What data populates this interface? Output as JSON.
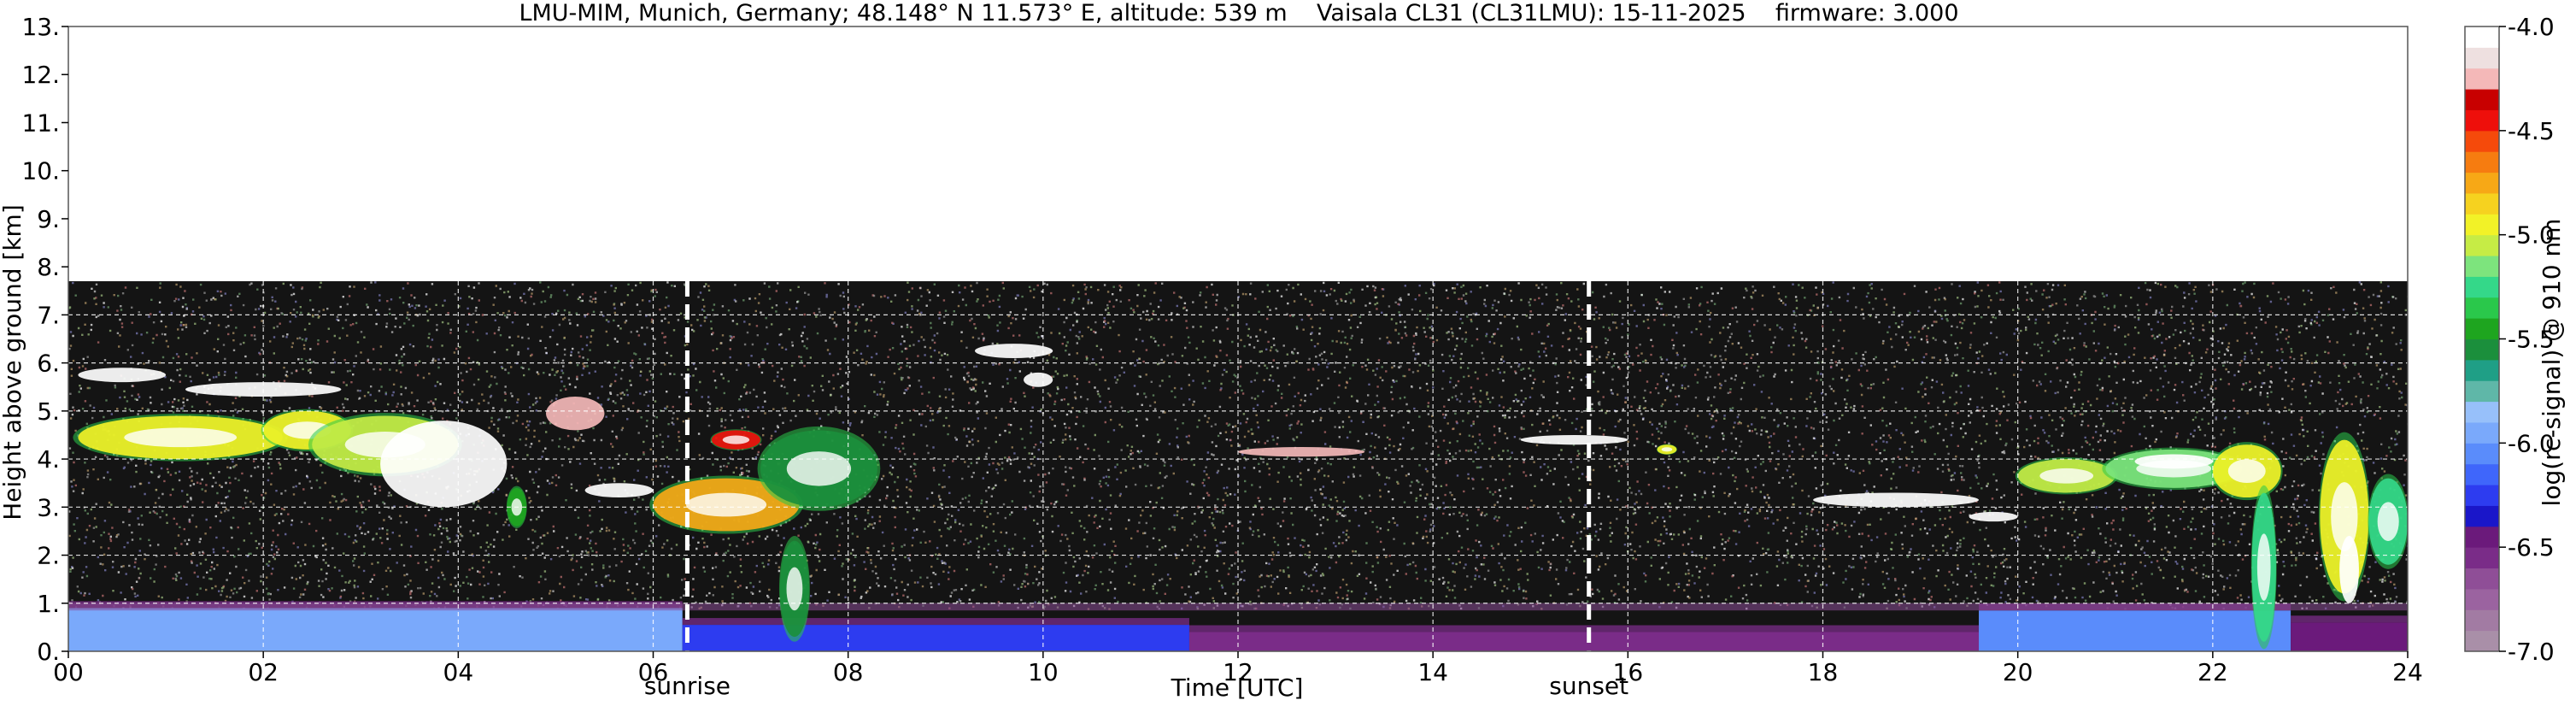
{
  "chart_data": {
    "type": "heatmap",
    "title": "LMU-MIM, Munich, Germany; 48.148° N 11.573° E, altitude: 539 m    Vaisala CL31 (CL31LMU): 15-11-2025    firmware: 3.000",
    "xlabel": "Time [UTC]",
    "ylabel": "Height above ground [km]",
    "xlim": [
      0,
      24
    ],
    "ylim": [
      0,
      13
    ],
    "x_ticks": [
      0,
      2,
      4,
      6,
      8,
      10,
      12,
      14,
      16,
      18,
      20,
      22,
      24
    ],
    "x_tick_labels": [
      "00",
      "02",
      "04",
      "06",
      "08",
      "10",
      "12",
      "14",
      "16",
      "18",
      "20",
      "22",
      "24"
    ],
    "y_ticks": [
      0,
      1,
      2,
      3,
      4,
      5,
      6,
      7,
      8,
      9,
      10,
      11,
      12,
      13
    ],
    "y_tick_labels": [
      "0.",
      "1.",
      "2.",
      "3.",
      "4.",
      "5.",
      "6.",
      "7.",
      "8.",
      "9.",
      "10.",
      "11.",
      "12.",
      "13."
    ],
    "grid": true,
    "data_top_km": 7.7,
    "markers": [
      {
        "label": "sunrise",
        "x": 6.35
      },
      {
        "label": "sunset",
        "x": 15.6
      }
    ],
    "colorbar": {
      "label": "log(rc-signal) @ 910 nm",
      "range": [
        -7.0,
        -4.0
      ],
      "ticks": [
        -7.0,
        -6.5,
        -6.0,
        -5.5,
        -5.0,
        -4.5,
        -4.0
      ],
      "tick_labels": [
        "-7.0",
        "-6.5",
        "-6.0",
        "-5.5",
        "-5.0",
        "-4.5",
        "-4.0"
      ],
      "colors": [
        "#a98fa8",
        "#a27ba3",
        "#9b63a0",
        "#8f4e97",
        "#7a2c88",
        "#6b1a7b",
        "#1a16c9",
        "#2d3cf0",
        "#3f66fb",
        "#5a8cfb",
        "#7aa9fb",
        "#97c0fa",
        "#5fb7a8",
        "#1f9f86",
        "#1b8f3c",
        "#1ea51f",
        "#2ac84b",
        "#34d889",
        "#7de47d",
        "#c6ec45",
        "#f2f227",
        "#f6d21f",
        "#f7a816",
        "#f67c10",
        "#f54a0b",
        "#ee0f0b",
        "#c80000",
        "#f4b8b8",
        "#eee0e0",
        "#ffffff"
      ]
    },
    "noise_ranges": [
      {
        "x": [
          0,
          24
        ],
        "y": [
          1.0,
          7.7
        ],
        "level": -6.7
      },
      {
        "x": [
          0,
          24
        ],
        "y": [
          0.0,
          1.0
        ],
        "level": -6.6
      }
    ],
    "boundary_layer": [
      {
        "x": [
          0,
          6.3
        ],
        "y": [
          0.0,
          0.9
        ],
        "level": -5.95
      },
      {
        "x": [
          6.3,
          11.5
        ],
        "y": [
          0.0,
          0.55
        ],
        "level": -6.2
      },
      {
        "x": [
          11.5,
          19.6
        ],
        "y": [
          0.0,
          0.4
        ],
        "level": -6.55
      },
      {
        "x": [
          19.6,
          22.8
        ],
        "y": [
          0.0,
          0.85
        ],
        "level": -6.05
      },
      {
        "x": [
          22.8,
          24
        ],
        "y": [
          0.0,
          0.6
        ],
        "level": -6.5
      }
    ],
    "cloud_features": [
      {
        "x": [
          0.1,
          1.0
        ],
        "y": [
          5.6,
          5.9
        ],
        "level": -4.1
      },
      {
        "x": [
          1.2,
          2.8
        ],
        "y": [
          5.3,
          5.6
        ],
        "level": -4.1
      },
      {
        "x": [
          0.1,
          2.2
        ],
        "y": [
          4.0,
          4.9
        ],
        "level": -5.0
      },
      {
        "x": [
          2.0,
          2.9
        ],
        "y": [
          4.2,
          5.0
        ],
        "level": -5.0
      },
      {
        "x": [
          2.5,
          4.0
        ],
        "y": [
          3.7,
          4.9
        ],
        "level": -5.1
      },
      {
        "x": [
          3.2,
          4.5
        ],
        "y": [
          3.0,
          4.8
        ],
        "level": -4.1
      },
      {
        "x": [
          4.5,
          4.7
        ],
        "y": [
          2.6,
          3.4
        ],
        "level": -5.4
      },
      {
        "x": [
          4.9,
          5.5
        ],
        "y": [
          4.6,
          5.3
        ],
        "level": -4.3
      },
      {
        "x": [
          5.3,
          6.0
        ],
        "y": [
          3.2,
          3.5
        ],
        "level": -4.1
      },
      {
        "x": [
          6.0,
          7.5
        ],
        "y": [
          2.5,
          3.6
        ],
        "level": -4.8
      },
      {
        "x": [
          6.6,
          7.1
        ],
        "y": [
          4.2,
          4.6
        ],
        "level": -4.4
      },
      {
        "x": [
          7.1,
          8.3
        ],
        "y": [
          3.0,
          4.6
        ],
        "level": -5.6
      },
      {
        "x": [
          7.3,
          7.6
        ],
        "y": [
          0.3,
          2.3
        ],
        "level": -5.6
      },
      {
        "x": [
          9.3,
          10.1
        ],
        "y": [
          6.1,
          6.4
        ],
        "level": -4.1
      },
      {
        "x": [
          9.8,
          10.1
        ],
        "y": [
          5.5,
          5.8
        ],
        "level": -4.1
      },
      {
        "x": [
          12.0,
          13.3
        ],
        "y": [
          4.05,
          4.25
        ],
        "level": -4.2
      },
      {
        "x": [
          14.9,
          16.0
        ],
        "y": [
          4.3,
          4.5
        ],
        "level": -4.1
      },
      {
        "x": [
          16.3,
          16.5
        ],
        "y": [
          4.1,
          4.3
        ],
        "level": -5.0
      },
      {
        "x": [
          17.9,
          19.6
        ],
        "y": [
          3.0,
          3.3
        ],
        "level": -4.1
      },
      {
        "x": [
          19.5,
          20.0
        ],
        "y": [
          2.7,
          2.9
        ],
        "level": -4.1
      },
      {
        "x": [
          20.0,
          21.0
        ],
        "y": [
          3.3,
          4.0
        ],
        "level": -5.1
      },
      {
        "x": [
          20.9,
          22.3
        ],
        "y": [
          3.4,
          4.2
        ],
        "level": -5.2
      },
      {
        "x": [
          21.2,
          22.0
        ],
        "y": [
          3.8,
          4.1
        ],
        "level": -4.1
      },
      {
        "x": [
          22.0,
          22.7
        ],
        "y": [
          3.2,
          4.3
        ],
        "level": -4.9
      },
      {
        "x": [
          22.4,
          22.65
        ],
        "y": [
          0.2,
          3.3
        ],
        "level": -5.3
      },
      {
        "x": [
          23.1,
          23.6
        ],
        "y": [
          1.2,
          4.4
        ],
        "level": -5.0
      },
      {
        "x": [
          23.3,
          23.5
        ],
        "y": [
          1.0,
          2.4
        ],
        "level": -4.1
      },
      {
        "x": [
          23.6,
          24.0
        ],
        "y": [
          1.8,
          3.6
        ],
        "level": -5.3
      }
    ]
  }
}
